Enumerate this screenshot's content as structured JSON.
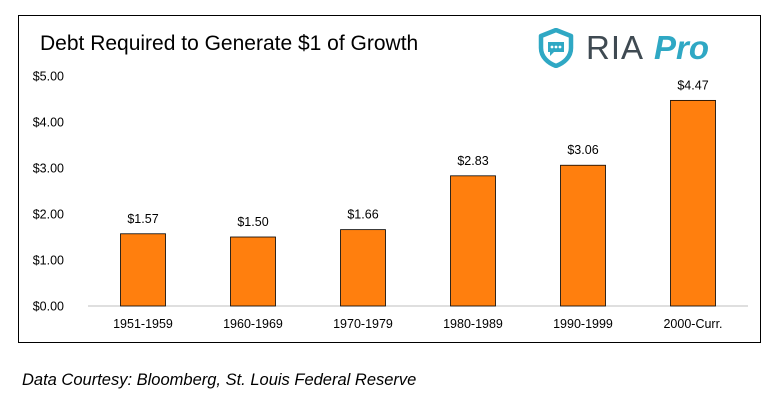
{
  "logo": {
    "text_main": "RIA",
    "text_accent": "Pro",
    "icon": "shield-chat-icon",
    "color_main": "#3f4a52",
    "color_accent": "#2fa8c4"
  },
  "source_note": "Data Courtesy: Bloomberg, St. Louis Federal Reserve",
  "chart_data": {
    "type": "bar",
    "title": "Debt Required to Generate $1 of Growth",
    "xlabel": "",
    "ylabel": "",
    "categories": [
      "1951-1959",
      "1960-1969",
      "1970-1979",
      "1980-1989",
      "1990-1999",
      "2000-Curr."
    ],
    "values": [
      1.57,
      1.5,
      1.66,
      2.83,
      3.06,
      4.47
    ],
    "data_labels": [
      "$1.57",
      "$1.50",
      "$1.66",
      "$2.83",
      "$3.06",
      "$4.47"
    ],
    "ylim": [
      0,
      5
    ],
    "y_ticks": [
      "$0.00",
      "$1.00",
      "$2.00",
      "$3.00",
      "$4.00",
      "$5.00"
    ],
    "bar_color": "#ff7f0e",
    "bar_border_color": "#000000",
    "grid": false,
    "legend": "none"
  }
}
